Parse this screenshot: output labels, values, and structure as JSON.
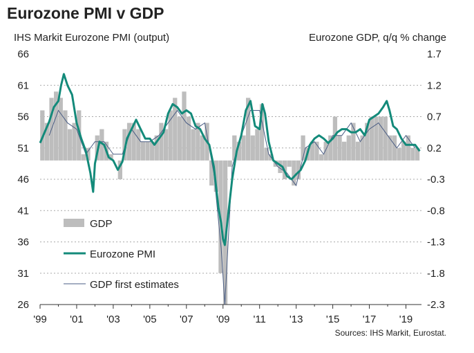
{
  "chart_data": {
    "type": "bar+line",
    "title": "Eurozone PMI v GDP",
    "ylabel_left": "IHS Markit Eurozone PMI (output)",
    "ylabel_right": "Eurozone GDP, q/q % change",
    "source": "Sources: IHS Markit, Eurostat.",
    "xlim": [
      1999.0,
      2019.85
    ],
    "ylim_left": [
      26,
      66
    ],
    "ylim_right": [
      -2.3,
      1.7
    ],
    "left_ticks": [
      "66",
      "61",
      "56",
      "51",
      "46",
      "41",
      "36",
      "31",
      "26"
    ],
    "right_ticks": [
      "1.7",
      "1.2",
      "0.7",
      "0.2",
      "-0.3",
      "-0.8",
      "-1.3",
      "-1.8",
      "-2.3"
    ],
    "x_ticks": [
      {
        "label": "'99",
        "x": 1999.0
      },
      {
        "label": "'01",
        "x": 2001.0
      },
      {
        "label": "'03",
        "x": 2003.0
      },
      {
        "label": "'05",
        "x": 2005.0
      },
      {
        "label": "'07",
        "x": 2007.0
      },
      {
        "label": "'09",
        "x": 2009.0
      },
      {
        "label": "'11",
        "x": 2011.0
      },
      {
        "label": "'13",
        "x": 2013.0
      },
      {
        "label": "'15",
        "x": 2015.0
      },
      {
        "label": "'17",
        "x": 2017.0
      },
      {
        "label": "'19",
        "x": 2019.0
      }
    ],
    "legend": {
      "position": "lower-left",
      "gdp": "GDP",
      "pmi": "Eurozone PMI",
      "first": "GDP first estimates"
    },
    "colors": {
      "gdp_bars": "#bdbdbd",
      "pmi_line": "#138a7a",
      "first_line": "#4a5d84",
      "grid": "#a8a8a8"
    },
    "gdp": {
      "quarters": [
        1999.125,
        1999.375,
        1999.625,
        1999.875,
        2000.125,
        2000.375,
        2000.625,
        2000.875,
        2001.125,
        2001.375,
        2001.625,
        2001.875,
        2002.125,
        2002.375,
        2002.625,
        2002.875,
        2003.125,
        2003.375,
        2003.625,
        2003.875,
        2004.125,
        2004.375,
        2004.625,
        2004.875,
        2005.125,
        2005.375,
        2005.625,
        2005.875,
        2006.125,
        2006.375,
        2006.625,
        2006.875,
        2007.125,
        2007.375,
        2007.625,
        2007.875,
        2008.125,
        2008.375,
        2008.625,
        2008.875,
        2009.125,
        2009.375,
        2009.625,
        2009.875,
        2010.125,
        2010.375,
        2010.625,
        2010.875,
        2011.125,
        2011.375,
        2011.625,
        2011.875,
        2012.125,
        2012.375,
        2012.625,
        2012.875,
        2013.125,
        2013.375,
        2013.625,
        2013.875,
        2014.125,
        2014.375,
        2014.625,
        2014.875,
        2015.125,
        2015.375,
        2015.625,
        2015.875,
        2016.125,
        2016.375,
        2016.625,
        2016.875,
        2017.125,
        2017.375,
        2017.625,
        2017.875,
        2018.125,
        2018.375,
        2018.625,
        2018.875,
        2019.125,
        2019.375,
        2019.625
      ],
      "values": [
        0.8,
        0.6,
        1.0,
        1.1,
        1.0,
        0.8,
        0.5,
        0.6,
        0.8,
        0.1,
        0.2,
        0.0,
        0.4,
        0.5,
        0.3,
        0.1,
        0.0,
        -0.3,
        0.5,
        0.6,
        0.6,
        0.5,
        0.3,
        0.3,
        0.3,
        0.4,
        0.6,
        0.5,
        0.8,
        1.0,
        0.7,
        1.1,
        0.7,
        0.5,
        0.6,
        0.4,
        0.6,
        -0.4,
        -0.5,
        -1.8,
        -3.0,
        -0.1,
        0.4,
        0.3,
        0.4,
        1.0,
        0.4,
        0.5,
        0.9,
        0.2,
        0.1,
        -0.1,
        -0.2,
        -0.3,
        -0.1,
        -0.4,
        -0.3,
        0.4,
        0.2,
        0.3,
        0.3,
        0.1,
        0.3,
        0.4,
        0.7,
        0.4,
        0.3,
        0.4,
        0.6,
        0.3,
        0.4,
        0.6,
        0.7,
        0.7,
        0.7,
        0.7,
        0.4,
        0.4,
        0.2,
        0.3,
        0.4,
        0.2,
        0.2
      ]
    },
    "pmi": {
      "x": [
        1999.0,
        1999.25,
        1999.5,
        1999.75,
        2000.0,
        2000.15,
        2000.3,
        2000.5,
        2000.75,
        2001.0,
        2001.25,
        2001.5,
        2001.75,
        2001.9,
        2002.0,
        2002.25,
        2002.5,
        2002.75,
        2003.0,
        2003.25,
        2003.5,
        2003.75,
        2004.0,
        2004.25,
        2004.5,
        2004.75,
        2005.0,
        2005.25,
        2005.5,
        2005.75,
        2006.0,
        2006.25,
        2006.5,
        2006.75,
        2007.0,
        2007.25,
        2007.5,
        2007.75,
        2008.0,
        2008.25,
        2008.5,
        2008.75,
        2008.9,
        2009.0,
        2009.1,
        2009.25,
        2009.5,
        2009.75,
        2010.0,
        2010.25,
        2010.5,
        2010.75,
        2011.0,
        2011.15,
        2011.3,
        2011.5,
        2011.75,
        2012.0,
        2012.25,
        2012.5,
        2012.75,
        2013.0,
        2013.25,
        2013.5,
        2013.75,
        2014.0,
        2014.25,
        2014.5,
        2014.75,
        2015.0,
        2015.25,
        2015.5,
        2015.75,
        2016.0,
        2016.25,
        2016.5,
        2016.75,
        2017.0,
        2017.25,
        2017.5,
        2017.75,
        2017.95,
        2018.1,
        2018.3,
        2018.5,
        2018.75,
        2019.0,
        2019.25,
        2019.5,
        2019.75
      ],
      "values": [
        51.8,
        53.5,
        55.2,
        57.5,
        58.5,
        61.0,
        62.8,
        61.0,
        59.5,
        55.0,
        52.5,
        50.5,
        47.0,
        44.0,
        48.5,
        52.0,
        51.5,
        49.5,
        49.0,
        47.5,
        48.8,
        52.5,
        54.0,
        55.5,
        54.0,
        52.5,
        52.5,
        51.5,
        52.5,
        53.5,
        56.5,
        58.0,
        57.5,
        56.5,
        57.0,
        56.5,
        54.5,
        54.0,
        52.5,
        51.5,
        48.0,
        41.5,
        39.0,
        36.5,
        35.5,
        39.5,
        46.0,
        50.5,
        53.0,
        57.0,
        58.5,
        54.5,
        54.0,
        58.0,
        56.5,
        52.0,
        49.0,
        48.5,
        48.0,
        46.5,
        46.0,
        46.8,
        47.5,
        49.0,
        51.5,
        52.5,
        53.0,
        52.5,
        51.8,
        52.5,
        53.5,
        54.0,
        54.0,
        53.5,
        53.5,
        54.0,
        53.0,
        55.5,
        56.0,
        56.5,
        57.5,
        58.5,
        57.0,
        54.5,
        54.0,
        52.5,
        51.5,
        51.5,
        51.5,
        50.5
      ]
    },
    "gdp_first_estimates": {
      "x": [
        1999.5,
        2000.0,
        2000.5,
        2001.0,
        2001.5,
        2002.0,
        2002.5,
        2003.0,
        2003.5,
        2004.0,
        2004.5,
        2005.0,
        2005.5,
        2006.0,
        2006.5,
        2007.0,
        2007.5,
        2008.0,
        2008.5,
        2008.9,
        2009.1,
        2009.5,
        2010.0,
        2010.5,
        2011.0,
        2011.5,
        2012.0,
        2012.5,
        2013.0,
        2013.5,
        2014.0,
        2014.5,
        2015.0,
        2015.5,
        2016.0,
        2016.5,
        2017.0,
        2017.5,
        2018.0,
        2018.5,
        2019.0,
        2019.5
      ],
      "values": [
        0.4,
        0.8,
        0.6,
        0.5,
        0.1,
        0.3,
        0.3,
        0.1,
        0.1,
        0.5,
        0.3,
        0.3,
        0.4,
        0.6,
        0.8,
        0.6,
        0.5,
        0.6,
        -0.2,
        -1.4,
        -2.3,
        -0.1,
        0.4,
        0.8,
        0.8,
        0.1,
        -0.1,
        -0.2,
        -0.4,
        0.2,
        0.3,
        0.1,
        0.4,
        0.4,
        0.6,
        0.3,
        0.5,
        0.6,
        0.4,
        0.2,
        0.4,
        0.2
      ]
    }
  }
}
